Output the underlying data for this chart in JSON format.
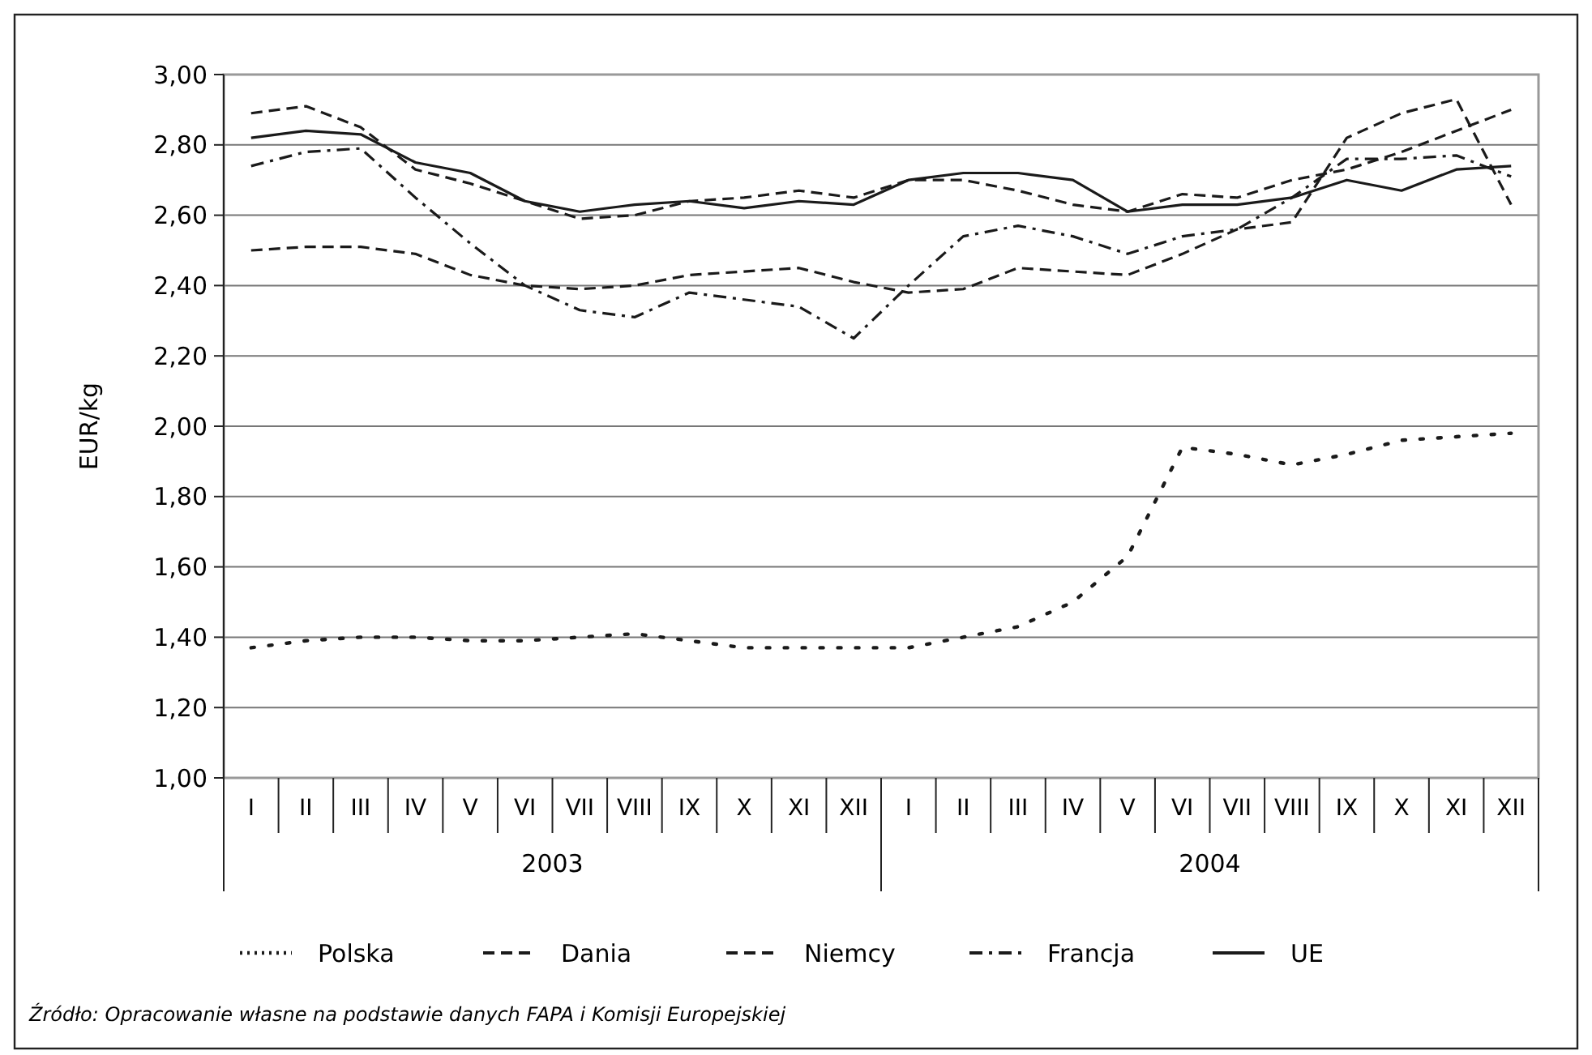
{
  "chart_data": {
    "type": "line",
    "ylabel": "EUR/kg",
    "categories": [
      "I",
      "II",
      "III",
      "IV",
      "V",
      "VI",
      "VII",
      "VIII",
      "IX",
      "X",
      "XI",
      "XII",
      "I",
      "II",
      "III",
      "IV",
      "V",
      "VI",
      "VII",
      "VIII",
      "IX",
      "X",
      "XI",
      "XII"
    ],
    "ylim": [
      1,
      3
    ],
    "yticks": [
      {
        "value": 1,
        "label": "1,00"
      },
      {
        "value": 1.2,
        "label": "1,20"
      },
      {
        "value": 1.4,
        "label": "1,40"
      },
      {
        "value": 1.6,
        "label": "1,60"
      },
      {
        "value": 1.8,
        "label": "1,80"
      },
      {
        "value": 2,
        "label": "2,00"
      },
      {
        "value": 2.2,
        "label": "2,20"
      },
      {
        "value": 2.4,
        "label": "2,40"
      },
      {
        "value": 2.6,
        "label": "2,60"
      },
      {
        "value": 2.8,
        "label": "2,80"
      },
      {
        "value": 3,
        "label": "3,00"
      }
    ],
    "grid": "y",
    "legend": "bottom",
    "marker": "none",
    "series": [
      {
        "name": "Polska",
        "color": "#1a1a1a",
        "line_style": "dotted",
        "values": [
          1.37,
          1.39,
          1.4,
          1.4,
          1.39,
          1.39,
          1.4,
          1.41,
          1.39,
          1.37,
          1.37,
          1.37,
          1.37,
          1.4,
          1.43,
          1.5,
          1.63,
          1.94,
          1.92,
          1.89,
          1.92,
          1.96,
          1.97,
          1.98
        ]
      },
      {
        "name": "Dania",
        "color": "#1a1a1a",
        "line_style": "dashed",
        "values": [
          2.5,
          2.51,
          2.51,
          2.49,
          2.43,
          2.4,
          2.39,
          2.4,
          2.43,
          2.44,
          2.45,
          2.41,
          2.38,
          2.39,
          2.45,
          2.44,
          2.43,
          2.49,
          2.56,
          2.58,
          2.82,
          2.89,
          2.93,
          2.63
        ]
      },
      {
        "name": "Niemcy",
        "color": "#1a1a1a",
        "line_style": "dashed",
        "values": [
          2.89,
          2.91,
          2.85,
          2.73,
          2.69,
          2.64,
          2.59,
          2.6,
          2.64,
          2.65,
          2.67,
          2.65,
          2.7,
          2.7,
          2.67,
          2.63,
          2.61,
          2.66,
          2.65,
          2.7,
          2.73,
          2.78,
          2.84,
          2.9
        ]
      },
      {
        "name": "Francja",
        "color": "#1a1a1a",
        "line_style": "dashed",
        "values": [
          2.74,
          2.78,
          2.79,
          2.65,
          2.52,
          2.4,
          2.33,
          2.31,
          2.38,
          2.36,
          2.34,
          2.25,
          2.4,
          2.54,
          2.57,
          2.54,
          2.49,
          2.54,
          2.56,
          2.65,
          2.76,
          2.76,
          2.77,
          2.71
        ]
      },
      {
        "name": "UE",
        "color": "#1a1a1a",
        "line_style": "solid",
        "values": [
          2.82,
          2.84,
          2.83,
          2.75,
          2.72,
          2.64,
          2.61,
          2.63,
          2.64,
          2.62,
          2.64,
          2.63,
          2.7,
          2.72,
          2.72,
          2.7,
          2.61,
          2.63,
          2.63,
          2.65,
          2.7,
          2.67,
          2.73,
          2.74
        ]
      }
    ],
    "annotations": [
      {
        "text": "2003"
      },
      {
        "text": "2004"
      },
      "Źródło: Opracowanie własne na podstawie danych FAPA i Komisji Europejskiej"
    ]
  }
}
